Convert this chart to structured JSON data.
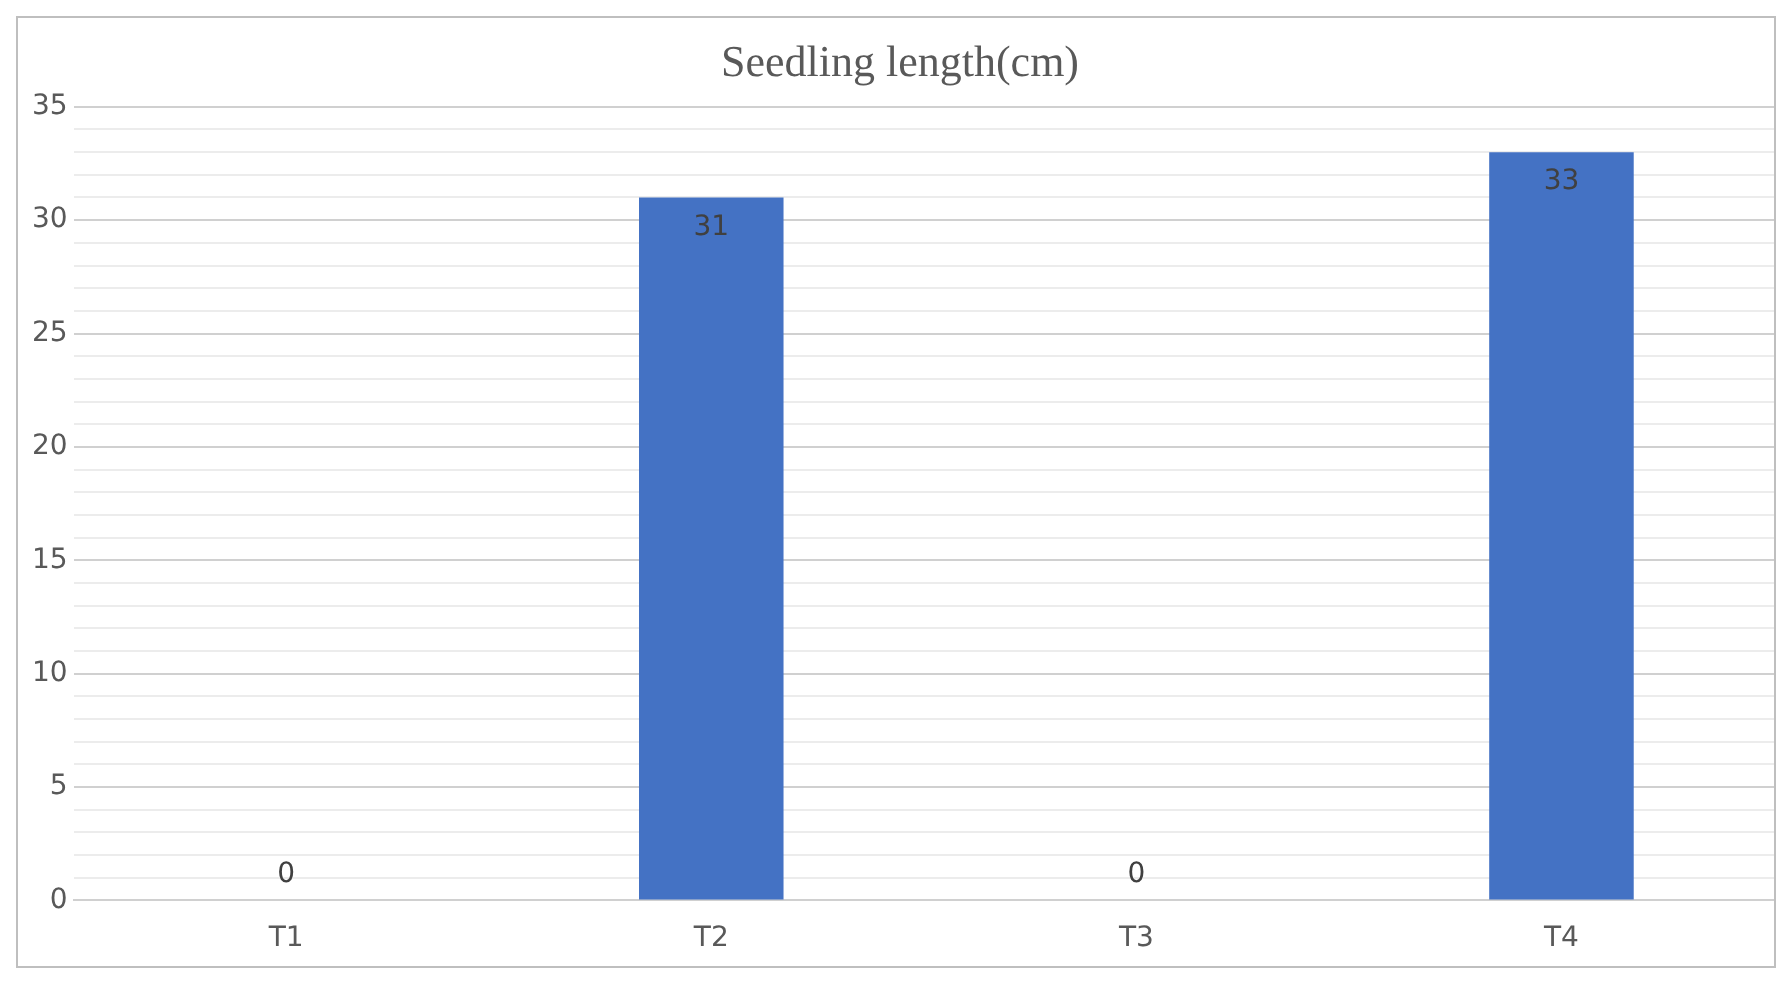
{
  "chart_data": {
    "type": "bar",
    "title": "Seedling length(cm)",
    "categories": [
      "T1",
      "T2",
      "T3",
      "T4"
    ],
    "values": [
      0,
      31,
      0,
      33
    ],
    "color": "#4472c4",
    "ylim": [
      0,
      35
    ],
    "yticks": [
      0,
      {
        "value": 1,
        "label": null
      },
      {
        "value": 2,
        "label": null
      },
      {
        "value": 3,
        "label": null
      },
      {
        "value": 4,
        "label": null
      },
      5,
      {
        "value": 6,
        "label": null
      },
      {
        "value": 7,
        "label": null
      },
      {
        "value": 8,
        "label": null
      },
      {
        "value": 9,
        "label": null
      },
      10,
      {
        "value": 11,
        "label": null
      },
      {
        "value": 12,
        "label": null
      },
      {
        "value": 13,
        "label": null
      },
      {
        "value": 14,
        "label": null
      },
      15,
      {
        "value": 16,
        "label": null
      },
      {
        "value": 17,
        "label": null
      },
      {
        "value": 18,
        "label": null
      },
      {
        "value": 19,
        "label": null
      },
      20,
      {
        "value": 21,
        "label": null
      },
      {
        "value": 22,
        "label": null
      },
      {
        "value": 23,
        "label": null
      },
      {
        "value": 24,
        "label": null
      },
      25,
      {
        "value": 26,
        "label": null
      },
      {
        "value": 27,
        "label": null
      },
      {
        "value": 28,
        "label": null
      },
      {
        "value": 29,
        "label": null
      },
      30,
      {
        "value": 31,
        "label": null
      },
      {
        "value": 32,
        "label": null
      },
      {
        "value": 33,
        "label": null
      },
      {
        "value": 34,
        "label": null
      },
      35
    ],
    "grid": "y",
    "data_labels": true,
    "legend": false
  }
}
